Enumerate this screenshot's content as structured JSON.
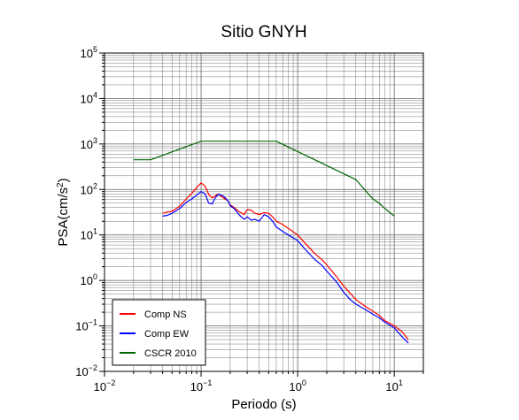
{
  "chart_data": {
    "type": "line",
    "title": "Sitio GNYH",
    "xlabel": "Periodo (s)",
    "ylabel_main": "PSA(cm/s",
    "ylabel_sup": "2",
    "ylabel_close": ")",
    "x_scale": "log",
    "y_scale": "log",
    "xlim": [
      0.01,
      20
    ],
    "ylim": [
      0.01,
      100000
    ],
    "grid": true,
    "legend_position": "bottom-left",
    "x_ticks": [
      {
        "value": 0.01,
        "base": "10",
        "exp": "−2"
      },
      {
        "value": 0.1,
        "base": "10",
        "exp": "−1"
      },
      {
        "value": 1,
        "base": "10",
        "exp": "0"
      },
      {
        "value": 10,
        "base": "10",
        "exp": "1"
      }
    ],
    "y_ticks": [
      {
        "value": 0.01,
        "base": "10",
        "exp": "−2"
      },
      {
        "value": 0.1,
        "base": "10",
        "exp": "−1"
      },
      {
        "value": 1,
        "base": "10",
        "exp": "0"
      },
      {
        "value": 10,
        "base": "10",
        "exp": "1"
      },
      {
        "value": 100,
        "base": "10",
        "exp": "2"
      },
      {
        "value": 1000,
        "base": "10",
        "exp": "3"
      },
      {
        "value": 10000,
        "base": "10",
        "exp": "4"
      },
      {
        "value": 100000,
        "base": "10",
        "exp": "5"
      }
    ],
    "series": [
      {
        "name": "Comp NS",
        "color": "#ff0000",
        "x": [
          0.04,
          0.045,
          0.05,
          0.06,
          0.07,
          0.08,
          0.09,
          0.1,
          0.11,
          0.12,
          0.13,
          0.14,
          0.15,
          0.17,
          0.19,
          0.2,
          0.22,
          0.25,
          0.28,
          0.3,
          0.33,
          0.36,
          0.4,
          0.45,
          0.5,
          0.55,
          0.6,
          0.7,
          0.8,
          1.0,
          1.2,
          1.5,
          1.8,
          2.0,
          2.5,
          3.0,
          3.5,
          4.0,
          5.0,
          6.0,
          7.0,
          8.0,
          10.0,
          12.0,
          14.0
        ],
        "y": [
          30,
          32,
          33,
          43,
          62,
          82,
          110,
          140,
          118,
          78,
          65,
          72,
          80,
          65,
          56,
          46,
          40,
          32,
          28,
          36,
          35,
          30,
          28,
          31,
          30,
          25,
          20,
          17,
          14,
          10,
          6.5,
          3.9,
          2.8,
          2.2,
          1.25,
          0.75,
          0.52,
          0.38,
          0.27,
          0.21,
          0.17,
          0.13,
          0.1,
          0.075,
          0.05
        ]
      },
      {
        "name": "Comp EW",
        "color": "#0000ff",
        "x": [
          0.04,
          0.045,
          0.05,
          0.06,
          0.07,
          0.08,
          0.09,
          0.1,
          0.11,
          0.12,
          0.13,
          0.14,
          0.15,
          0.17,
          0.19,
          0.2,
          0.22,
          0.25,
          0.28,
          0.3,
          0.33,
          0.36,
          0.4,
          0.45,
          0.5,
          0.55,
          0.6,
          0.7,
          0.8,
          1.0,
          1.2,
          1.5,
          1.8,
          2.0,
          2.5,
          3.0,
          3.5,
          4.0,
          5.0,
          6.0,
          7.0,
          8.0,
          10.0,
          12.0,
          14.0
        ],
        "y": [
          26,
          27,
          30,
          38,
          52,
          62,
          75,
          90,
          80,
          50,
          48,
          65,
          78,
          72,
          56,
          44,
          38,
          27,
          22,
          25,
          21,
          22,
          20,
          28,
          25,
          20,
          15,
          12,
          10,
          7.5,
          4.8,
          2.9,
          2.1,
          1.6,
          0.95,
          0.55,
          0.38,
          0.3,
          0.23,
          0.18,
          0.15,
          0.12,
          0.09,
          0.058,
          0.042
        ]
      },
      {
        "name": "CSCR 2010",
        "color": "#006400",
        "x": [
          0.02,
          0.03,
          0.1,
          0.6,
          4.0,
          6.0,
          7.0,
          8.0,
          10.0
        ],
        "y": [
          450,
          450,
          1150,
          1150,
          165,
          62,
          50,
          38,
          26
        ]
      }
    ]
  }
}
